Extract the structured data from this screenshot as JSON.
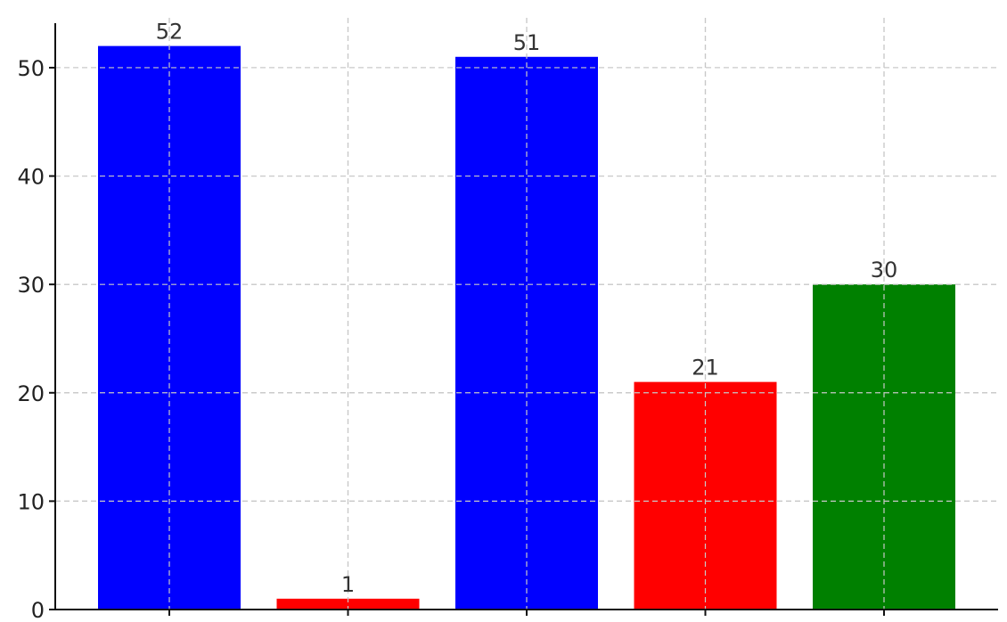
{
  "chart_data": {
    "type": "bar",
    "categories": [
      "",
      "",
      "",
      "",
      ""
    ],
    "values": [
      52,
      1,
      51,
      21,
      30
    ],
    "colors": [
      "#0000ff",
      "#ff0000",
      "#0000ff",
      "#ff0000",
      "#008000"
    ],
    "data_labels": [
      "52",
      "1",
      "51",
      "21",
      "30"
    ],
    "title": "",
    "xlabel": "",
    "ylabel": "",
    "ylim": [
      0,
      54.6
    ],
    "yticks": [
      0,
      10,
      20,
      30,
      40,
      50
    ],
    "grid": true,
    "legend": "none"
  }
}
